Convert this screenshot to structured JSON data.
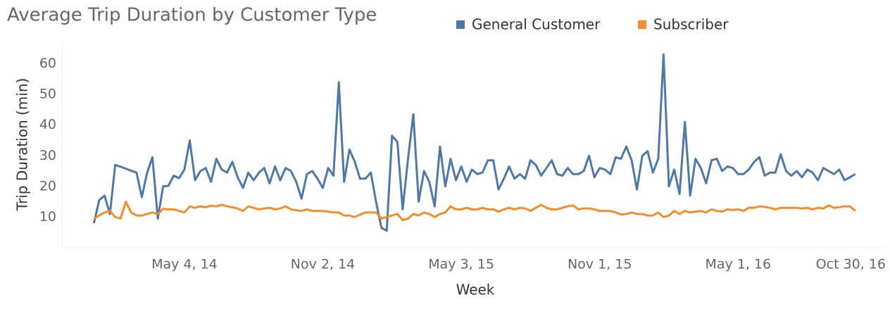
{
  "chart_data": {
    "type": "line",
    "title": "Average Trip Duration by Customer Type",
    "x_label": "Week",
    "y_label": "Trip Duration (min)",
    "x": [
      "2014-01-05",
      "2014-01-12",
      "2014-01-19",
      "2014-01-26",
      "2014-02-02",
      "2014-02-09",
      "2014-02-16",
      "2014-02-23",
      "2014-03-02",
      "2014-03-09",
      "2014-03-16",
      "2014-03-23",
      "2014-03-30",
      "2014-04-06",
      "2014-04-13",
      "2014-04-20",
      "2014-04-27",
      "2014-05-04",
      "2014-05-11",
      "2014-05-18",
      "2014-05-25",
      "2014-06-01",
      "2014-06-08",
      "2014-06-15",
      "2014-06-22",
      "2014-06-29",
      "2014-07-06",
      "2014-07-13",
      "2014-07-20",
      "2014-07-27",
      "2014-08-03",
      "2014-08-10",
      "2014-08-17",
      "2014-08-24",
      "2014-08-31",
      "2014-09-07",
      "2014-09-14",
      "2014-09-21",
      "2014-09-28",
      "2014-10-05",
      "2014-10-12",
      "2014-10-19",
      "2014-10-26",
      "2014-11-02",
      "2014-11-09",
      "2014-11-16",
      "2014-11-23",
      "2014-11-30",
      "2014-12-07",
      "2014-12-14",
      "2014-12-21",
      "2014-12-28",
      "2015-01-04",
      "2015-01-11",
      "2015-01-18",
      "2015-01-25",
      "2015-02-01",
      "2015-02-08",
      "2015-02-15",
      "2015-02-22",
      "2015-03-01",
      "2015-03-08",
      "2015-03-15",
      "2015-03-22",
      "2015-03-29",
      "2015-04-05",
      "2015-04-12",
      "2015-04-19",
      "2015-04-26",
      "2015-05-03",
      "2015-05-10",
      "2015-05-17",
      "2015-05-24",
      "2015-05-31",
      "2015-06-07",
      "2015-06-14",
      "2015-06-21",
      "2015-06-28",
      "2015-07-05",
      "2015-07-12",
      "2015-07-19",
      "2015-07-26",
      "2015-08-02",
      "2015-08-09",
      "2015-08-16",
      "2015-08-23",
      "2015-08-30",
      "2015-09-06",
      "2015-09-13",
      "2015-09-20",
      "2015-09-27",
      "2015-10-04",
      "2015-10-11",
      "2015-10-18",
      "2015-10-25",
      "2015-11-01",
      "2015-11-08",
      "2015-11-15",
      "2015-11-22",
      "2015-11-29",
      "2015-12-06",
      "2015-12-13",
      "2015-12-20",
      "2015-12-27",
      "2016-01-03",
      "2016-01-10",
      "2016-01-17",
      "2016-01-24",
      "2016-01-31",
      "2016-02-07",
      "2016-02-14",
      "2016-02-21",
      "2016-02-28",
      "2016-03-06",
      "2016-03-13",
      "2016-03-20",
      "2016-03-27",
      "2016-04-03",
      "2016-04-10",
      "2016-04-17",
      "2016-04-24",
      "2016-05-01",
      "2016-05-08",
      "2016-05-15",
      "2016-05-22",
      "2016-05-29",
      "2016-06-05",
      "2016-06-12",
      "2016-06-19",
      "2016-06-26",
      "2016-07-03",
      "2016-07-10",
      "2016-07-17",
      "2016-07-24",
      "2016-07-31",
      "2016-08-07",
      "2016-08-14",
      "2016-08-21",
      "2016-08-28",
      "2016-09-04",
      "2016-09-11",
      "2016-09-18",
      "2016-09-25",
      "2016-10-02"
    ],
    "series": [
      {
        "name": "General Customer",
        "color": "#4e79a7",
        "values": [
          8,
          15.5,
          17,
          11,
          27,
          26.4,
          25.8,
          25.1,
          24.5,
          16.5,
          24.5,
          29.5,
          9.5,
          20,
          20.2,
          23.5,
          22.7,
          25.5,
          35,
          22,
          25,
          26,
          21.5,
          29,
          25.5,
          24.5,
          28,
          23,
          19.5,
          24.5,
          22,
          24.5,
          26,
          21,
          26.5,
          22,
          26,
          25,
          21.5,
          16,
          24,
          25,
          22.5,
          19.5,
          26,
          23.5,
          54,
          21.5,
          32,
          28,
          22.5,
          22.5,
          24.5,
          15,
          6.5,
          5.5,
          36.5,
          34.5,
          12.5,
          29,
          43.5,
          15,
          25,
          21.5,
          13.5,
          33,
          20,
          29,
          22,
          26.5,
          21.5,
          25.5,
          24,
          24.5,
          28.5,
          28.5,
          19,
          22.5,
          26.5,
          22.5,
          24,
          22.5,
          28.5,
          27,
          23.5,
          26,
          28.5,
          24,
          23.5,
          26,
          24,
          24,
          25,
          30,
          23,
          26,
          25.5,
          24,
          29.5,
          29,
          33,
          28.5,
          19,
          30,
          31.5,
          24.5,
          29,
          63,
          20,
          25.5,
          17.5,
          41,
          17,
          29,
          26,
          21,
          28.5,
          29,
          25,
          26.5,
          26,
          24,
          24,
          25.5,
          28,
          29.5,
          23.5,
          24.5,
          24.5,
          30.5,
          25,
          23.5,
          25,
          23,
          25.5,
          24.5,
          22,
          26,
          25,
          24,
          25.5,
          22,
          23,
          24
        ]
      },
      {
        "name": "Subscriber",
        "color": "#f28e2b",
        "values": [
          9.5,
          10.5,
          11.5,
          12,
          10,
          9.5,
          15,
          11.5,
          10.5,
          10.5,
          11,
          11.5,
          11,
          12.7,
          12.5,
          12.5,
          12,
          11.5,
          13.5,
          13,
          13.5,
          13.2,
          13.7,
          13.5,
          14,
          13.5,
          13.2,
          12.8,
          12,
          13.5,
          13,
          12.5,
          12.8,
          13,
          12.5,
          12.8,
          13.5,
          12.5,
          12.2,
          12,
          12.5,
          12,
          12,
          12,
          11.8,
          11.5,
          11.5,
          10.5,
          10.5,
          10,
          10.8,
          11.5,
          11.5,
          11.5,
          9.5,
          10,
          10.5,
          11,
          9,
          9.5,
          11,
          10.5,
          11.5,
          11,
          10,
          11,
          11.5,
          13.5,
          12.5,
          12.5,
          13,
          12.5,
          12.5,
          13,
          12.5,
          12.5,
          11.8,
          12.5,
          13,
          12.5,
          13,
          12.8,
          12,
          13,
          14,
          13,
          12.5,
          12.5,
          13,
          13.5,
          13.8,
          12.5,
          12.8,
          12.8,
          12.5,
          12,
          12,
          12,
          11.5,
          10.8,
          11,
          11.5,
          11,
          11,
          10.5,
          10.5,
          11.5,
          10,
          10.5,
          12,
          11,
          12,
          11.5,
          11.8,
          12,
          11.5,
          12.5,
          12,
          11.8,
          12.5,
          12.3,
          12.5,
          12,
          13,
          13,
          13.5,
          13.3,
          13,
          12.5,
          13,
          13,
          13,
          13,
          12.8,
          13,
          12.5,
          13,
          12.8,
          13.8,
          13,
          13.2,
          13.5,
          13.5,
          12
        ]
      }
    ],
    "xlim": [
      "2013-11-24",
      "2016-11-13"
    ],
    "xticks": [
      {
        "value": "2014-05-04",
        "label": "May 4, 14"
      },
      {
        "value": "2014-11-02",
        "label": "Nov 2, 14"
      },
      {
        "value": "2015-05-03",
        "label": "May 3, 15"
      },
      {
        "value": "2015-11-01",
        "label": "Nov 1, 15"
      },
      {
        "value": "2016-05-01",
        "label": "May 1, 16"
      },
      {
        "value": "2016-10-30",
        "label": "Oct 30, 16"
      }
    ],
    "ylim": [
      0,
      67
    ],
    "yticks": [
      10,
      20,
      30,
      40,
      50,
      60
    ],
    "grid": false,
    "legend": "top"
  }
}
